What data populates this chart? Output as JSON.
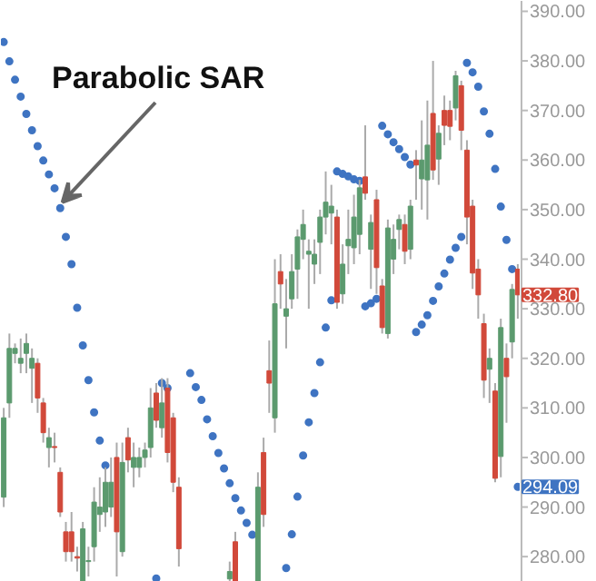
{
  "chart_data": {
    "type": "candlestick",
    "categories": [
      null,
      null,
      null,
      null,
      null,
      null,
      null,
      null,
      null,
      null,
      null,
      null,
      null,
      null,
      null,
      null,
      null,
      null,
      null,
      null,
      null,
      null,
      null,
      null,
      null,
      null,
      null,
      null,
      null,
      null,
      null,
      null,
      null,
      null,
      null,
      null,
      null,
      null,
      null,
      null,
      null,
      null,
      null,
      null,
      null,
      null,
      null,
      null,
      null,
      null,
      null,
      null,
      null,
      null,
      null,
      null,
      null,
      null,
      null,
      null,
      null,
      null,
      null,
      null,
      null,
      null,
      null,
      null,
      null,
      null,
      null,
      null,
      null,
      null,
      null,
      null,
      null,
      null,
      null,
      null,
      null,
      null,
      null,
      null,
      null,
      null,
      null,
      null,
      null,
      null,
      null,
      null
    ],
    "ohlc": [
      [
        292,
        310,
        290,
        308
      ],
      [
        311,
        325,
        308,
        322
      ],
      [
        321,
        323,
        319,
        322
      ],
      [
        319,
        324,
        317,
        320
      ],
      [
        321,
        325,
        317,
        323
      ],
      [
        318,
        322,
        311,
        320
      ],
      [
        319,
        320,
        309,
        312
      ],
      [
        311,
        312,
        303,
        305
      ],
      [
        302,
        306,
        298,
        304
      ],
      [
        302.2,
        305,
        299,
        302
      ],
      [
        297,
        298,
        288,
        289
      ],
      [
        285,
        287,
        279,
        281
      ],
      [
        285,
        289,
        279,
        281
      ],
      [
        280,
        282,
        277,
        279.7
      ],
      [
        275,
        287,
        275,
        285.6
      ],
      [
        279,
        282,
        276,
        279.2
      ],
      [
        282,
        294,
        279,
        291
      ],
      [
        288.5,
        296,
        285,
        290
      ],
      [
        289,
        298,
        286,
        295
      ],
      [
        290,
        300,
        288,
        295
      ],
      [
        300,
        303,
        276,
        285
      ],
      [
        281,
        303,
        280,
        299
      ],
      [
        304,
        306,
        297,
        299.5
      ],
      [
        298,
        303,
        294,
        300
      ],
      [
        298,
        302,
        296,
        300
      ],
      [
        300,
        303,
        298,
        301.5
      ],
      [
        302,
        314,
        300,
        310
      ],
      [
        313,
        315,
        306,
        307.5
      ],
      [
        306,
        316,
        304,
        311
      ],
      [
        314,
        316,
        299,
        301
      ],
      [
        308,
        309,
        293,
        295
      ],
      [
        294,
        296,
        278,
        281.6
      ],
      null,
      null,
      null,
      null,
      null,
      null,
      null,
      null,
      [
        275.5,
        279,
        275,
        277
      ],
      [
        283,
        285,
        275,
        275
      ],
      null,
      null,
      null,
      [
        275,
        297,
        275,
        294
      ],
      [
        301,
        304,
        286,
        288.5
      ],
      [
        317.5,
        323.6,
        309,
        315
      ],
      [
        308,
        340,
        305,
        331
      ],
      [
        337.5,
        341,
        330,
        335
      ],
      [
        328.5,
        336,
        322,
        330
      ],
      [
        332,
        341,
        330,
        337.5
      ],
      [
        338,
        346,
        332,
        344.5
      ],
      [
        344,
        350,
        340,
        347
      ],
      [
        341,
        344,
        330,
        341.6
      ],
      [
        339,
        344,
        335,
        341
      ],
      [
        343.4,
        350,
        337,
        348.5
      ],
      [
        348.5,
        357.7,
        345,
        351.5
      ],
      [
        349.3,
        355,
        343,
        350.7
      ],
      [
        348.5,
        350,
        330,
        331.3
      ],
      [
        333,
        343,
        331,
        339
      ],
      [
        342.7,
        350,
        337,
        344
      ],
      [
        342.3,
        353,
        339,
        348.5
      ],
      [
        345,
        356,
        341,
        354.4
      ],
      [
        356.6,
        367,
        352,
        353.3
      ],
      [
        342,
        349,
        334,
        347.4
      ],
      [
        352,
        354,
        333,
        338.3
      ],
      [
        334.6,
        336,
        325,
        326.2
      ],
      [
        325,
        348,
        324,
        346.3
      ],
      [
        340,
        347,
        337,
        344
      ],
      [
        346,
        349,
        342,
        348
      ],
      [
        347,
        349,
        339,
        341.6
      ],
      [
        342,
        352,
        340,
        350.7
      ],
      [
        360,
        362,
        352,
        359
      ],
      [
        356.2,
        368,
        350,
        360
      ],
      [
        356,
        372,
        348,
        363
      ],
      [
        369.4,
        380,
        356,
        358
      ],
      [
        360.2,
        367,
        355,
        365.4
      ],
      [
        370,
        373,
        363,
        367
      ],
      [
        370,
        372,
        364,
        366.8
      ],
      [
        370.5,
        378,
        368,
        377
      ],
      [
        375,
        376,
        362,
        366
      ],
      [
        362,
        364,
        343,
        348.5
      ],
      [
        350.7,
        352,
        334,
        337.2
      ],
      [
        338,
        340,
        328,
        332.8
      ],
      [
        327,
        329,
        312,
        315.6
      ],
      [
        317.8,
        322,
        311,
        320
      ],
      [
        313.4,
        315,
        295,
        295.8
      ],
      [
        300.2,
        328,
        296,
        326.2
      ],
      [
        320,
        323,
        307,
        316.3
      ],
      [
        323.3,
        335,
        320,
        333.9
      ],
      [
        338,
        339,
        328,
        332.8
      ]
    ],
    "colors": [
      "#5b9a6e",
      "#5b9a6e",
      "#5b9a6e",
      "#5b9a6e",
      "#5b9a6e",
      "#5b9a6e",
      "#d1493a",
      "#d1493a",
      "#5b9a6e",
      "#d1493a",
      "#d1493a",
      "#d1493a",
      "#d1493a",
      "#d1493a",
      "#5b9a6e",
      "#5b9a6e",
      "#5b9a6e",
      "#5b9a6e",
      "#5b9a6e",
      "#5b9a6e",
      "#d1493a",
      "#5b9a6e",
      "#d1493a",
      "#5b9a6e",
      "#5b9a6e",
      "#5b9a6e",
      "#5b9a6e",
      "#d1493a",
      "#5b9a6e",
      "#d1493a",
      "#d1493a",
      "#d1493a",
      null,
      null,
      null,
      null,
      null,
      null,
      null,
      null,
      "#5b9a6e",
      "#d1493a",
      null,
      null,
      null,
      "#5b9a6e",
      "#d1493a",
      "#d1493a",
      "#5b9a6e",
      "#d1493a",
      "#5b9a6e",
      "#5b9a6e",
      "#5b9a6e",
      "#5b9a6e",
      "#5b9a6e",
      "#5b9a6e",
      "#5b9a6e",
      "#5b9a6e",
      "#5b9a6e",
      "#d1493a",
      "#5b9a6e",
      "#5b9a6e",
      "#5b9a6e",
      "#5b9a6e",
      "#d1493a",
      "#5b9a6e",
      "#d1493a",
      "#d1493a",
      "#5b9a6e",
      "#5b9a6e",
      "#5b9a6e",
      "#d1493a",
      "#5b9a6e",
      "#d1493a",
      "#5b9a6e",
      "#5b9a6e",
      "#d1493a",
      "#5b9a6e",
      "#d1493a",
      "#d1493a",
      "#5b9a6e",
      "#d1493a",
      "#d1493a",
      "#d1493a",
      "#d1493a",
      "#d1493a",
      "#5b9a6e",
      "#d1493a",
      "#5b9a6e",
      "#d1493a",
      "#5b9a6e",
      "#d1493a"
    ],
    "series": [
      {
        "type": "scatter",
        "color": "#3f74c2",
        "marker": "circle",
        "values": [
          383.8,
          379.9,
          376.2,
          372.8,
          369.3,
          366,
          362.8,
          359.9,
          357.1,
          354.3,
          350.3,
          344.5,
          339,
          330.2,
          322.6,
          315.6,
          309.1,
          303.4,
          298.4,
          null,
          null,
          null,
          null,
          null,
          null,
          null,
          null,
          275.6,
          315,
          314,
          null,
          null,
          null,
          317,
          314.2,
          311.6,
          307.7,
          304.3,
          300.9,
          297.8,
          294.8,
          291.8,
          289.3,
          286.8,
          284.4,
          null,
          null,
          null,
          null,
          null,
          277.7,
          284.5,
          292.1,
          300.4,
          307.1,
          313,
          319.2,
          326.2,
          331.7,
          357.7,
          357.2,
          356.7,
          356.1,
          355.8,
          330.5,
          331.1,
          332,
          366.9,
          365.2,
          363.6,
          362.2,
          360.6,
          359.1,
          325.3,
          326.8,
          328.7,
          331.6,
          334.5,
          337.1,
          339.9,
          342.3,
          344.5,
          379.6,
          377.7,
          374.8,
          369.8,
          365.3,
          358.2,
          350.6,
          343.9,
          338,
          294.09
        ]
      }
    ],
    "ylim": [
      274.9,
      392.1
    ],
    "yticks": [
      {
        "value": 280,
        "label": "280.00"
      },
      {
        "value": 290,
        "label": "290.00"
      },
      {
        "value": 300,
        "label": "300.00"
      },
      {
        "value": 310,
        "label": "310.00"
      },
      {
        "value": 320,
        "label": "320.00"
      },
      {
        "value": 330,
        "label": "330.00"
      },
      {
        "value": 340,
        "label": "340.00"
      },
      {
        "value": 350,
        "label": "350.00"
      },
      {
        "value": 360,
        "label": "360.00"
      },
      {
        "value": 370,
        "label": "370.00"
      },
      {
        "value": 380,
        "label": "380.00"
      },
      {
        "value": 390,
        "label": "390.00"
      }
    ],
    "tick_labels": "y",
    "grid": false,
    "annotations": [
      "Parabolic SAR",
      "332.80",
      "294.09"
    ]
  }
}
